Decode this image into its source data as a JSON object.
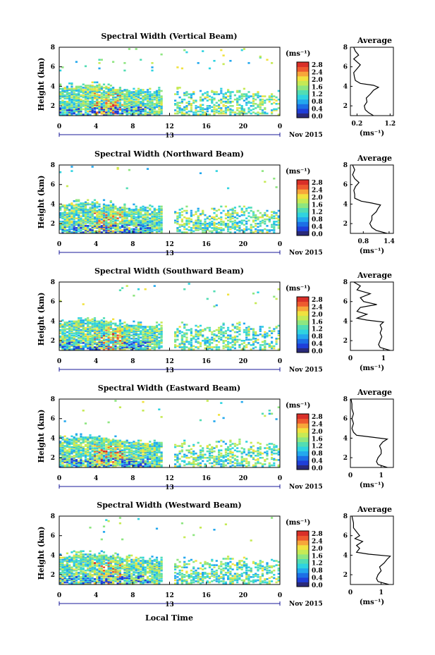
{
  "common": {
    "ylabel": "Height (km)",
    "date_label": "Nov 2015",
    "day_label": "13",
    "x_ticks": [
      "0",
      "4",
      "8",
      "12",
      "16",
      "20",
      "0"
    ],
    "y_ticks": [
      "8",
      "6",
      "4",
      "2"
    ],
    "unit_label": "(ms⁻¹)",
    "avg_title": "Average",
    "xlabel": "Local Time"
  },
  "colormap": [
    "#ffffff",
    "#2a2a7a",
    "#1f3fd9",
    "#1c6fe6",
    "#23a8ee",
    "#2fd3e0",
    "#52ddb3",
    "#8ee680",
    "#c6ea55",
    "#f1e23f",
    "#f7a63a",
    "#ee5a2f",
    "#d92f28"
  ],
  "chart_data": [
    {
      "type": "heatmap",
      "title": "Spectral Width (Vertical Beam)",
      "colorbar_ticks": [
        "2.8",
        "2.4",
        "2.0",
        "1.6",
        "1.2",
        "0.8",
        "0.4",
        "0.0"
      ],
      "avg_x_ticks": [
        "0.2",
        "1.2"
      ],
      "avg_xlim": [
        0,
        1.3
      ],
      "ylim": [
        1,
        8
      ],
      "xlim_hours": [
        0,
        24
      ],
      "avg_profile": [
        [
          0.7,
          1.0
        ],
        [
          0.55,
          1.3
        ],
        [
          0.45,
          1.6
        ],
        [
          0.42,
          2.0
        ],
        [
          0.5,
          2.4
        ],
        [
          0.48,
          2.8
        ],
        [
          0.6,
          3.2
        ],
        [
          0.7,
          3.6
        ],
        [
          0.85,
          3.9
        ],
        [
          0.7,
          4.1
        ],
        [
          0.3,
          4.3
        ],
        [
          0.15,
          4.6
        ],
        [
          0.12,
          5.0
        ],
        [
          0.1,
          5.4
        ],
        [
          0.2,
          5.8
        ],
        [
          0.3,
          6.2
        ],
        [
          0.2,
          6.5
        ],
        [
          0.1,
          6.8
        ],
        [
          0.25,
          7.2
        ],
        [
          0.15,
          7.6
        ],
        [
          0.1,
          8.0
        ]
      ]
    },
    {
      "type": "heatmap",
      "title": "Spectral Width (Northward Beam)",
      "colorbar_ticks": [
        "2.8",
        "2.4",
        "2.0",
        "1.6",
        "1.2",
        "0.8",
        "0.4",
        "0.0"
      ],
      "avg_x_ticks": [
        "0.8",
        "1.4"
      ],
      "avg_xlim": [
        0.5,
        1.5
      ],
      "ylim": [
        1,
        8
      ],
      "xlim_hours": [
        0,
        24
      ],
      "avg_profile": [
        [
          1.35,
          1.0
        ],
        [
          1.1,
          1.3
        ],
        [
          1.0,
          1.6
        ],
        [
          0.95,
          2.0
        ],
        [
          1.0,
          2.4
        ],
        [
          1.0,
          2.8
        ],
        [
          1.1,
          3.2
        ],
        [
          1.15,
          3.6
        ],
        [
          1.2,
          3.9
        ],
        [
          1.0,
          4.1
        ],
        [
          0.75,
          4.3
        ],
        [
          0.6,
          4.6
        ],
        [
          0.6,
          5.0
        ],
        [
          0.58,
          5.4
        ],
        [
          0.62,
          5.8
        ],
        [
          0.7,
          6.2
        ],
        [
          0.6,
          6.6
        ],
        [
          0.55,
          7.0
        ],
        [
          0.6,
          7.5
        ],
        [
          0.55,
          8.0
        ]
      ]
    },
    {
      "type": "heatmap",
      "title": "Spectral Width (Southward Beam)",
      "colorbar_ticks": [
        "2.8",
        "2.4",
        "2.0",
        "1.6",
        "1.2",
        "0.8",
        "0.4",
        "0.0"
      ],
      "avg_x_ticks": [
        "0",
        "1"
      ],
      "avg_xlim": [
        0,
        1.3
      ],
      "ylim": [
        1,
        8
      ],
      "xlim_hours": [
        0,
        24
      ],
      "avg_profile": [
        [
          1.2,
          1.0
        ],
        [
          0.9,
          1.3
        ],
        [
          0.85,
          1.6
        ],
        [
          0.9,
          2.0
        ],
        [
          0.95,
          2.4
        ],
        [
          0.9,
          2.8
        ],
        [
          0.95,
          3.2
        ],
        [
          0.9,
          3.6
        ],
        [
          1.0,
          3.9
        ],
        [
          0.5,
          4.1
        ],
        [
          0.2,
          4.3
        ],
        [
          0.5,
          4.7
        ],
        [
          0.2,
          5.0
        ],
        [
          0.3,
          5.4
        ],
        [
          0.8,
          5.7
        ],
        [
          0.4,
          6.0
        ],
        [
          0.3,
          6.4
        ],
        [
          0.6,
          6.8
        ],
        [
          0.2,
          7.2
        ],
        [
          0.3,
          7.6
        ],
        [
          0.1,
          8.0
        ]
      ]
    },
    {
      "type": "heatmap",
      "title": "Spectral Width (Eastward Beam)",
      "colorbar_ticks": [
        "2.8",
        "2.4",
        "2.0",
        "1.6",
        "1.2",
        "0.8",
        "0.4",
        "0.0"
      ],
      "avg_x_ticks": [
        "0",
        "1"
      ],
      "avg_xlim": [
        0,
        1.4
      ],
      "ylim": [
        1,
        8
      ],
      "xlim_hours": [
        0,
        24
      ],
      "avg_profile": [
        [
          1.2,
          1.0
        ],
        [
          0.9,
          1.3
        ],
        [
          0.85,
          1.6
        ],
        [
          0.9,
          2.0
        ],
        [
          1.0,
          2.4
        ],
        [
          1.0,
          2.8
        ],
        [
          0.95,
          3.2
        ],
        [
          1.05,
          3.6
        ],
        [
          1.2,
          3.9
        ],
        [
          0.7,
          4.1
        ],
        [
          0.2,
          4.3
        ],
        [
          0.1,
          4.6
        ],
        [
          0.05,
          5.0
        ],
        [
          0.1,
          5.5
        ],
        [
          0.05,
          6.0
        ],
        [
          0.1,
          6.5
        ],
        [
          0.05,
          7.0
        ],
        [
          0.05,
          7.5
        ],
        [
          0.02,
          8.0
        ]
      ]
    },
    {
      "type": "heatmap",
      "title": "Spectral Width (Westward Beam)",
      "colorbar_ticks": [
        "2.8",
        "2.4",
        "2.0",
        "1.6",
        "1.2",
        "0.8",
        "0.4",
        "0.0"
      ],
      "avg_x_ticks": [
        "0",
        "1"
      ],
      "avg_xlim": [
        0,
        1.4
      ],
      "ylim": [
        1,
        8
      ],
      "xlim_hours": [
        0,
        24
      ],
      "avg_profile": [
        [
          1.25,
          1.0
        ],
        [
          0.9,
          1.3
        ],
        [
          0.85,
          1.6
        ],
        [
          0.9,
          2.0
        ],
        [
          1.0,
          2.4
        ],
        [
          0.95,
          2.8
        ],
        [
          1.1,
          3.2
        ],
        [
          1.2,
          3.6
        ],
        [
          1.3,
          3.9
        ],
        [
          0.6,
          4.1
        ],
        [
          0.2,
          4.3
        ],
        [
          0.3,
          4.7
        ],
        [
          0.2,
          5.0
        ],
        [
          0.4,
          5.4
        ],
        [
          0.15,
          5.7
        ],
        [
          0.3,
          6.0
        ],
        [
          0.2,
          6.4
        ],
        [
          0.1,
          6.8
        ],
        [
          0.1,
          7.3
        ],
        [
          0.05,
          8.0
        ]
      ]
    }
  ]
}
